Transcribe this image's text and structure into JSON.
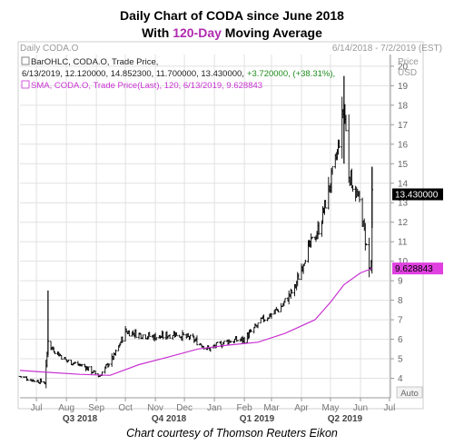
{
  "title_line1": "Daily Chart of CODA since June 2018",
  "title_line2_pre": "With ",
  "title_line2_highlight": "120-Day",
  "title_line2_post": " Moving Average",
  "credit": "Chart courtesy of Thomson Reuters Eikon",
  "colors": {
    "price_bar": "#000000",
    "sma_line": "#c832d2",
    "sma_badge": "#e040e0",
    "price_badge": "#000000",
    "highlight": "#b02ab0",
    "green_change": "#1e8c1e",
    "grid": "#e1e1e1"
  },
  "chart_data": {
    "type": "line",
    "subtype": "ohlc_with_sma",
    "header_left": "Daily CODA.O",
    "header_right": "6/14/2018 - 7/2/2019 (EST)",
    "price_label": "Price",
    "currency_label": "USD",
    "auto_label": "Auto",
    "legend": {
      "ohlc_text": "BarOHLC, CODA.O, Trade Price,",
      "ohlc_values": "6/13/2019, 12.120000, 14.852300, 11.700000, 13.430000,",
      "ohlc_change": "+3.720000, (+38.31%),",
      "sma_text": "SMA, CODA.O, Trade Price(Last), 120, 6/13/2019, 9.628843"
    },
    "y_ticks": [
      4,
      5,
      6,
      7,
      8,
      9,
      10,
      11,
      12,
      13,
      14,
      15,
      16,
      17,
      18,
      19,
      20
    ],
    "ylim": [
      3.0,
      20.6
    ],
    "last_price_label": "13.430000",
    "last_price": 13.43,
    "sma_label": "9.628843",
    "sma_last": 9.628843,
    "x_months": [
      {
        "label": "Jul",
        "date": "2018-07-01"
      },
      {
        "label": "Aug",
        "date": "2018-08-01"
      },
      {
        "label": "Sep",
        "date": "2018-09-01"
      },
      {
        "label": "Oct",
        "date": "2018-10-01"
      },
      {
        "label": "Nov",
        "date": "2018-11-01"
      },
      {
        "label": "Dec",
        "date": "2018-12-01"
      },
      {
        "label": "Jan",
        "date": "2019-01-01"
      },
      {
        "label": "Feb",
        "date": "2019-02-01"
      },
      {
        "label": "Mar",
        "date": "2019-03-01"
      },
      {
        "label": "Apr",
        "date": "2019-04-01"
      },
      {
        "label": "May",
        "date": "2019-05-01"
      },
      {
        "label": "Jun",
        "date": "2019-06-01"
      },
      {
        "label": "Jul",
        "date": "2019-07-01"
      }
    ],
    "x_quarters": [
      {
        "label": "Q3 2018",
        "date": "2018-08-15"
      },
      {
        "label": "Q4 2018",
        "date": "2018-11-15"
      },
      {
        "label": "Q1 2019",
        "date": "2019-02-14"
      },
      {
        "label": "Q2 2019",
        "date": "2019-05-16"
      }
    ],
    "x_start": "2018-06-14",
    "x_end": "2019-07-02",
    "price_series": [
      {
        "date": "2018-06-14",
        "close": 4.1
      },
      {
        "date": "2018-06-28",
        "close": 3.9
      },
      {
        "date": "2018-07-10",
        "close": 3.8
      },
      {
        "date": "2018-07-13",
        "close": 6.0
      },
      {
        "date": "2018-07-16",
        "close": 5.6
      },
      {
        "date": "2018-08-01",
        "close": 4.9
      },
      {
        "date": "2018-08-20",
        "close": 4.6
      },
      {
        "date": "2018-09-04",
        "close": 4.1
      },
      {
        "date": "2018-09-20",
        "close": 5.2
      },
      {
        "date": "2018-10-01",
        "close": 6.4
      },
      {
        "date": "2018-10-20",
        "close": 6.2
      },
      {
        "date": "2018-11-05",
        "close": 6.1
      },
      {
        "date": "2018-11-20",
        "close": 6.3
      },
      {
        "date": "2018-12-10",
        "close": 6.0
      },
      {
        "date": "2018-12-26",
        "close": 5.5
      },
      {
        "date": "2019-01-15",
        "close": 5.9
      },
      {
        "date": "2019-02-01",
        "close": 6.0
      },
      {
        "date": "2019-02-20",
        "close": 7.0
      },
      {
        "date": "2019-03-10",
        "close": 7.6
      },
      {
        "date": "2019-03-25",
        "close": 8.6
      },
      {
        "date": "2019-04-05",
        "close": 10.3
      },
      {
        "date": "2019-04-20",
        "close": 11.8
      },
      {
        "date": "2019-05-01",
        "close": 14.0
      },
      {
        "date": "2019-05-08",
        "close": 15.5
      },
      {
        "date": "2019-05-15",
        "close": 18.0
      },
      {
        "date": "2019-05-20",
        "close": 14.5
      },
      {
        "date": "2019-05-31",
        "close": 13.0
      },
      {
        "date": "2019-06-05",
        "close": 11.5
      },
      {
        "date": "2019-06-10",
        "close": 9.6
      },
      {
        "date": "2019-06-12",
        "close": 9.7
      },
      {
        "date": "2019-06-13",
        "close": 13.43
      }
    ],
    "spikes": [
      {
        "date": "2018-07-13",
        "high": 8.5,
        "low": 5.2
      },
      {
        "date": "2019-05-15",
        "high": 19.5,
        "low": 15.0
      },
      {
        "date": "2019-06-13",
        "high": 14.85,
        "low": 11.7
      }
    ],
    "sma_series": [
      {
        "date": "2018-06-14",
        "value": 4.4
      },
      {
        "date": "2018-07-15",
        "value": 4.3
      },
      {
        "date": "2018-08-15",
        "value": 4.2
      },
      {
        "date": "2018-09-15",
        "value": 4.15
      },
      {
        "date": "2018-10-15",
        "value": 4.7
      },
      {
        "date": "2018-11-15",
        "value": 5.1
      },
      {
        "date": "2018-12-15",
        "value": 5.5
      },
      {
        "date": "2019-01-15",
        "value": 5.7
      },
      {
        "date": "2019-02-15",
        "value": 5.85
      },
      {
        "date": "2019-03-15",
        "value": 6.3
      },
      {
        "date": "2019-04-15",
        "value": 7.0
      },
      {
        "date": "2019-05-01",
        "value": 7.9
      },
      {
        "date": "2019-05-15",
        "value": 8.8
      },
      {
        "date": "2019-06-01",
        "value": 9.4
      },
      {
        "date": "2019-06-13",
        "value": 9.63
      }
    ]
  }
}
